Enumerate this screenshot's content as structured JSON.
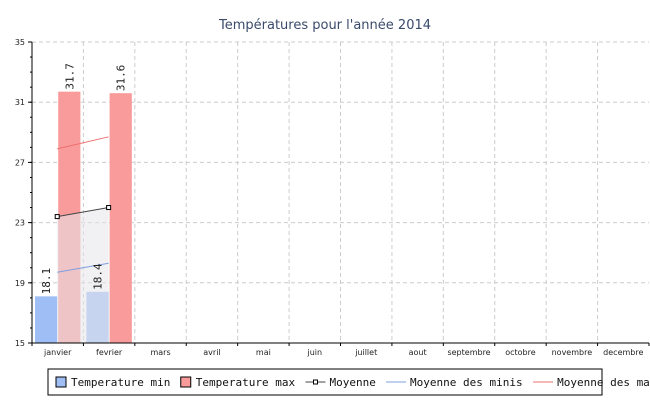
{
  "chart_data": {
    "type": "bar",
    "title": "Températures pour l'année 2014",
    "categories": [
      "janvier",
      "fevrier",
      "mars",
      "avril",
      "mai",
      "juin",
      "juillet",
      "aout",
      "septembre",
      "octobre",
      "novembre",
      "decembre"
    ],
    "ylim": [
      15,
      35
    ],
    "yticks": [
      15,
      19,
      23,
      27,
      31,
      35
    ],
    "grid": true,
    "series": [
      {
        "name": "Temperature min",
        "kind": "bar",
        "color": "#9fbef5",
        "values": [
          18.1,
          18.4,
          null,
          null,
          null,
          null,
          null,
          null,
          null,
          null,
          null,
          null
        ],
        "labels": [
          "18.1",
          "18.4"
        ]
      },
      {
        "name": "Temperature max",
        "kind": "bar",
        "color": "#f99b9b",
        "values": [
          31.7,
          31.6,
          null,
          null,
          null,
          null,
          null,
          null,
          null,
          null,
          null,
          null
        ],
        "labels": [
          "31.7",
          "31.6"
        ]
      },
      {
        "name": "Moyenne",
        "kind": "line",
        "color": "#444444",
        "marker": "square",
        "values": [
          23.4,
          24.0,
          null,
          null,
          null,
          null,
          null,
          null,
          null,
          null,
          null,
          null
        ]
      },
      {
        "name": "Moyenne des minis",
        "kind": "line",
        "color": "#7e9fe0",
        "values": [
          19.7,
          20.3,
          null,
          null,
          null,
          null,
          null,
          null,
          null,
          null,
          null,
          null
        ]
      },
      {
        "name": "Moyenne des maxis",
        "kind": "line",
        "color": "#ee6f6f",
        "values": [
          27.9,
          28.7,
          null,
          null,
          null,
          null,
          null,
          null,
          null,
          null,
          null,
          null
        ]
      }
    ],
    "legend_position": "bottom"
  }
}
